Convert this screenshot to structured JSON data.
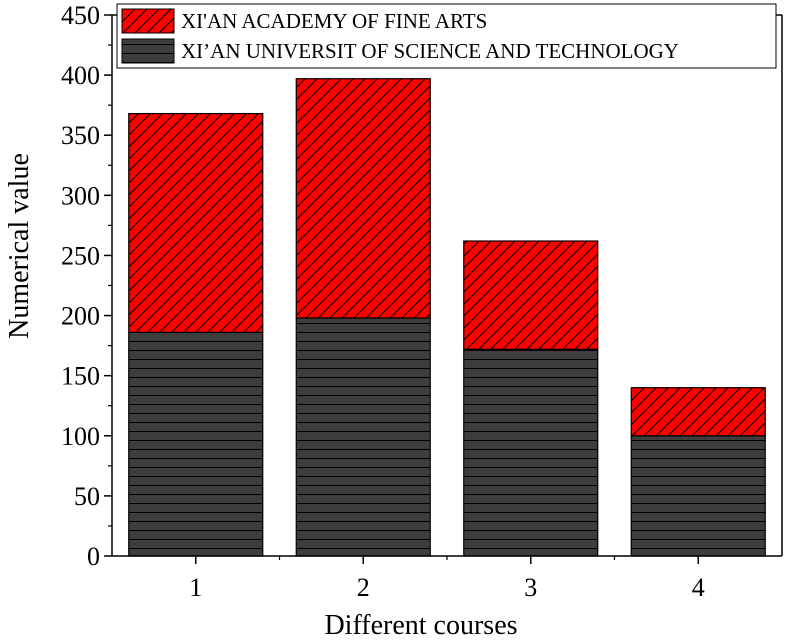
{
  "chart_data": {
    "type": "bar",
    "stacked": true,
    "categories": [
      "1",
      "2",
      "3",
      "4"
    ],
    "series": [
      {
        "name": "XI’AN UNIVERSIT OF SCIENCE AND TECHNOLOGY",
        "values": [
          186,
          198,
          172,
          100
        ],
        "color": "#3d3d3d",
        "pattern": "horizontal-lines"
      },
      {
        "name": "XI'AN ACADEMY OF FINE ARTS",
        "values": [
          182,
          199,
          90,
          40
        ],
        "color": "#ff0000",
        "pattern": "diagonal-lines"
      }
    ],
    "legend_order": [
      "XI'AN ACADEMY OF FINE ARTS",
      "XI’AN UNIVERSIT OF SCIENCE AND TECHNOLOGY"
    ],
    "xlabel": "Different courses",
    "ylabel": "Numerical value",
    "ylim": [
      0,
      450
    ],
    "yticks": [
      0,
      50,
      100,
      150,
      200,
      250,
      300,
      350,
      400,
      450
    ],
    "grid": false,
    "legend_position": "top"
  }
}
